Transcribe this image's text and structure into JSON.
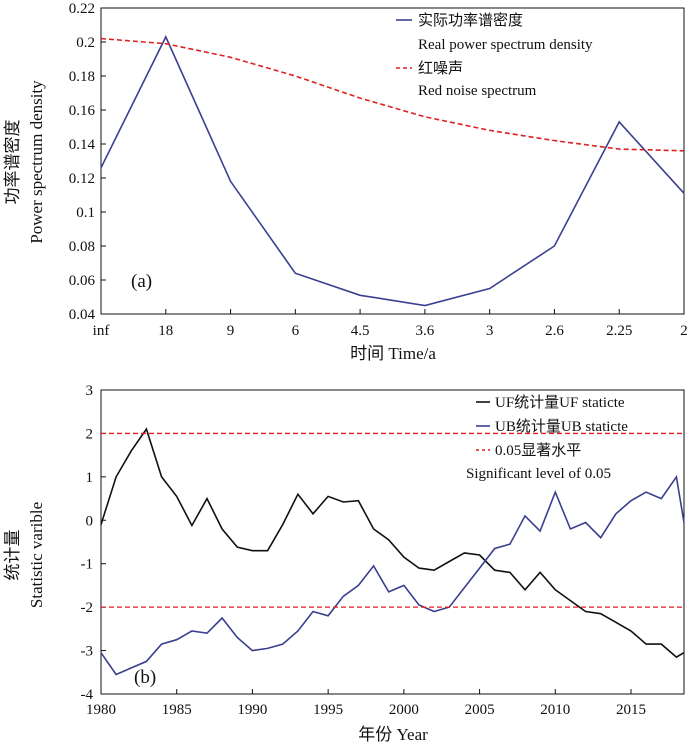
{
  "chart_data": [
    {
      "type": "line",
      "panel_label": "(a)",
      "xlabel": "时间 Time/a",
      "ylabel_cn": "功率谱密度",
      "ylabel_en": "Power spectrum density",
      "categories": [
        "inf",
        "18",
        "9",
        "6",
        "4.5",
        "3.6",
        "3",
        "2.6",
        "2.25",
        "2"
      ],
      "ylim": [
        0.04,
        0.22
      ],
      "yticks": [
        "0.04",
        "0.06",
        "0.08",
        "0.1",
        "0.12",
        "0.14",
        "0.16",
        "0.18",
        "0.2",
        "0.22"
      ],
      "legend_position": "top-right",
      "series": [
        {
          "name": "实际功率谱密度",
          "name_en": "Real power spectrum density",
          "color": "#3a3f8f",
          "style": "solid",
          "values": [
            0.126,
            0.203,
            0.118,
            0.064,
            0.051,
            0.045,
            0.055,
            0.08,
            0.153,
            0.111
          ]
        },
        {
          "name": "红噪声",
          "name_en": "Red noise spectrum",
          "color": "#e02020",
          "style": "dashed",
          "values": [
            0.202,
            0.199,
            0.191,
            0.18,
            0.167,
            0.156,
            0.148,
            0.142,
            0.137,
            0.136
          ]
        }
      ]
    },
    {
      "type": "line",
      "panel_label": "(b)",
      "xlabel": "年份 Year",
      "ylabel_cn": "统计量",
      "ylabel_en": "Statistic varible",
      "xlim": [
        1980,
        2018.5
      ],
      "xticks": [
        1980,
        1985,
        1990,
        1995,
        2000,
        2005,
        2010,
        2015
      ],
      "ylim": [
        -4,
        3
      ],
      "yticks": [
        -4,
        -3,
        -2,
        -1,
        0,
        1,
        2,
        3
      ],
      "legend_position": "top-right",
      "series": [
        {
          "name": "UF统计量UF staticte",
          "color": "#111111",
          "style": "solid",
          "x": [
            1980,
            1981,
            1982,
            1983,
            1984,
            1985,
            1986,
            1987,
            1988,
            1989,
            1990,
            1991,
            1992,
            1993,
            1994,
            1995,
            1996,
            1997,
            1998,
            1999,
            2000,
            2001,
            2002,
            2003,
            2004,
            2005,
            2006,
            2007,
            2008,
            2009,
            2010,
            2011,
            2012,
            2013,
            2014,
            2015,
            2016,
            2017,
            2018,
            2018.5
          ],
          "values": [
            -0.1,
            1.0,
            1.6,
            2.1,
            1.0,
            0.55,
            -0.12,
            0.5,
            -0.2,
            -0.62,
            -0.7,
            -0.7,
            -0.1,
            0.6,
            0.15,
            0.55,
            0.42,
            0.45,
            -0.2,
            -0.45,
            -0.85,
            -1.1,
            -1.15,
            -0.95,
            -0.75,
            -0.8,
            -1.15,
            -1.2,
            -1.6,
            -1.2,
            -1.6,
            -1.85,
            -2.1,
            -2.15,
            -2.35,
            -2.55,
            -2.85,
            -2.85,
            -3.15,
            -3.05
          ]
        },
        {
          "name": "UB统计量UB staticte",
          "color": "#3a3f8f",
          "style": "solid",
          "x": [
            1980,
            1981,
            1982,
            1983,
            1984,
            1985,
            1986,
            1987,
            1988,
            1989,
            1990,
            1991,
            1992,
            1993,
            1994,
            1995,
            1996,
            1997,
            1998,
            1999,
            2000,
            2001,
            2002,
            2003,
            2004,
            2005,
            2006,
            2007,
            2008,
            2009,
            2010,
            2011,
            2012,
            2013,
            2014,
            2015,
            2016,
            2017,
            2018,
            2018.5
          ],
          "values": [
            -3.05,
            -3.55,
            -3.4,
            -3.25,
            -2.85,
            -2.75,
            -2.55,
            -2.6,
            -2.25,
            -2.7,
            -3.0,
            -2.95,
            -2.85,
            -2.55,
            -2.1,
            -2.2,
            -1.75,
            -1.5,
            -1.05,
            -1.65,
            -1.5,
            -1.95,
            -2.1,
            -2.0,
            -1.55,
            -1.1,
            -0.65,
            -0.55,
            0.1,
            -0.25,
            0.65,
            -0.2,
            -0.05,
            -0.4,
            0.15,
            0.45,
            0.65,
            0.5,
            1.0,
            -0.05
          ]
        },
        {
          "name": "0.05显著水平",
          "name_en": "Significant level of 0.05",
          "color": "#e02020",
          "style": "dashed",
          "levels": [
            2,
            -2
          ]
        }
      ]
    }
  ]
}
